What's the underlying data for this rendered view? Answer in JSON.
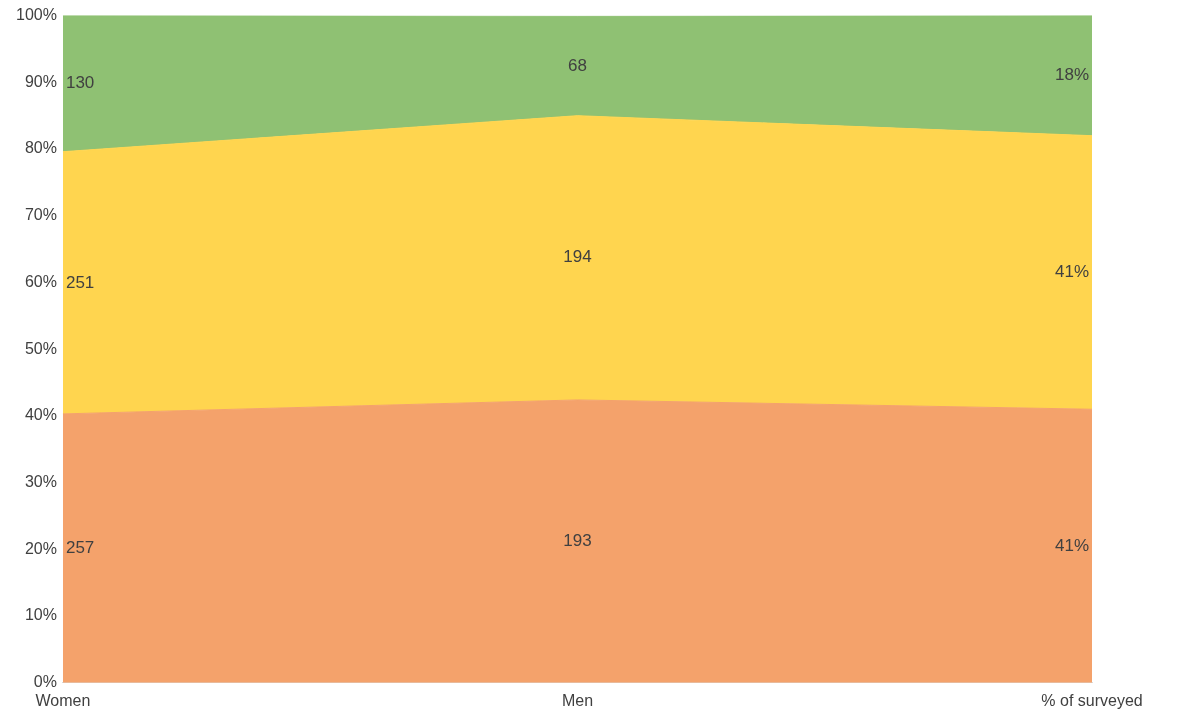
{
  "chart_data": {
    "type": "area",
    "stacked": true,
    "categories": [
      "Women",
      "Men",
      "% of surveyed"
    ],
    "series": [
      {
        "color": "#f4a26b",
        "values": [
          40.3,
          42.4,
          41
        ]
      },
      {
        "color": "#ffd54f",
        "values": [
          39.3,
          42.6,
          41
        ]
      },
      {
        "color": "#8fc173",
        "values": [
          20.4,
          14.9,
          18
        ]
      }
    ],
    "annotations": [
      "257",
      "251",
      "130",
      "193",
      "194",
      "68",
      "41%",
      "41%",
      "18%"
    ],
    "ylim": [
      0,
      100
    ],
    "yticks": [
      {
        "value": 0,
        "label": "0%"
      },
      {
        "value": 10,
        "label": "10%"
      },
      {
        "value": 20,
        "label": "20%"
      },
      {
        "value": 30,
        "label": "30%"
      },
      {
        "value": 40,
        "label": "40%"
      },
      {
        "value": 50,
        "label": "50%"
      },
      {
        "value": 60,
        "label": "60%"
      },
      {
        "value": 70,
        "label": "70%"
      },
      {
        "value": 80,
        "label": "80%"
      },
      {
        "value": 90,
        "label": "90%"
      },
      {
        "value": 100,
        "label": "100%"
      }
    ]
  }
}
